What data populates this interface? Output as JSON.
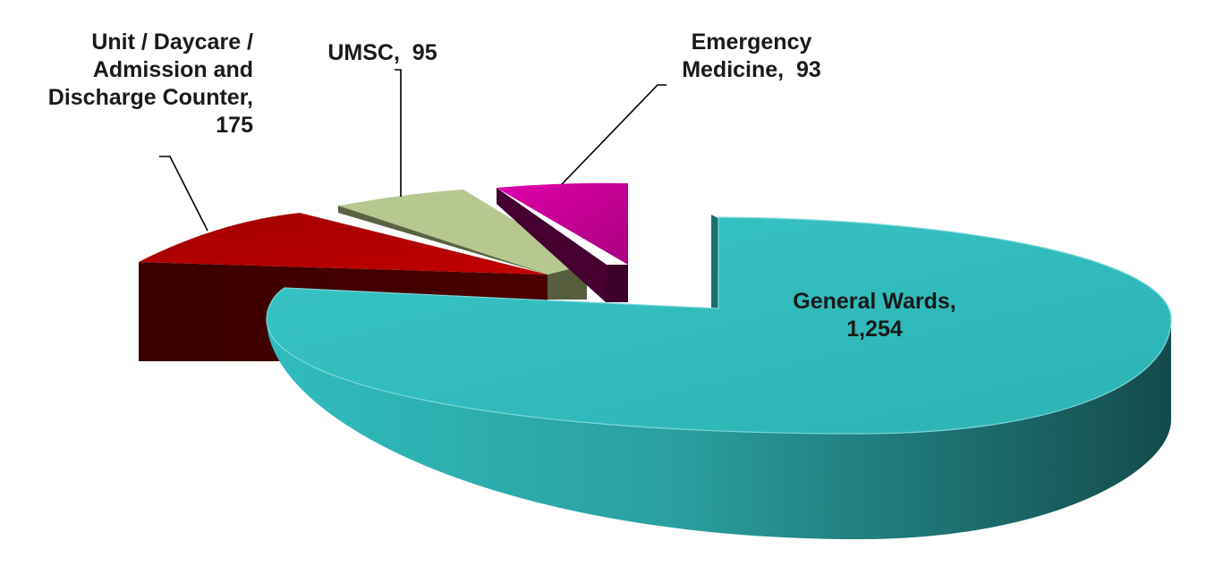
{
  "chart_data": {
    "type": "pie",
    "style": "3d-exploded",
    "title": "",
    "slices": [
      {
        "label": "General Wards",
        "value": 1254,
        "value_text": "1,254",
        "color": "#31bcbd"
      },
      {
        "label": "Unit / Daycare / Admission and Discharge Counter",
        "value": 175,
        "value_text": "175",
        "color": "#c00000"
      },
      {
        "label": "UMSC",
        "value": 95,
        "value_text": "95",
        "color": "#b3c68e"
      },
      {
        "label": "Emergency Medicine",
        "value": 93,
        "value_text": "93",
        "color": "#cc0099"
      }
    ],
    "data_labels": [
      {
        "text": "General Wards,\n1,254"
      },
      {
        "text": "Unit / Daycare /\nAdmission and\nDischarge Counter,\n175"
      },
      {
        "text": "UMSC,  95"
      },
      {
        "text": "Emergency\nMedicine,  93"
      }
    ]
  }
}
